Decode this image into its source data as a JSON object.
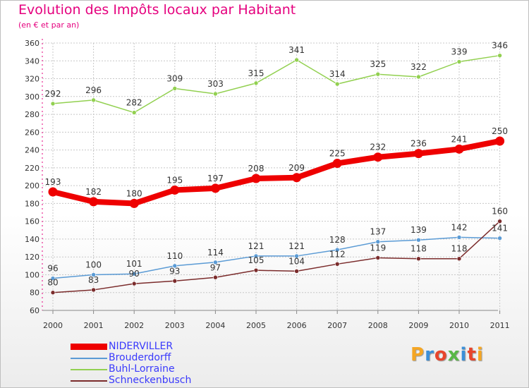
{
  "title": "Evolution des Impôts locaux par Habitant",
  "subtitle": "(en € et par an)",
  "logo": {
    "text": "Proxiti",
    "colors": [
      "#f5a623",
      "#3b8fd8",
      "#e8452c",
      "#59b847",
      "#3b8fd8",
      "#e8452c",
      "#f5a623"
    ]
  },
  "chart_data": {
    "type": "line",
    "title": "Evolution des Impôts locaux par Habitant",
    "subtitle": "(en € et par an)",
    "xlabel": "",
    "ylabel": "",
    "x": [
      2000,
      2001,
      2002,
      2003,
      2004,
      2005,
      2006,
      2007,
      2008,
      2009,
      2010,
      2011
    ],
    "ylim": [
      60,
      360
    ],
    "yticks": [
      60,
      80,
      100,
      120,
      140,
      160,
      180,
      200,
      220,
      240,
      260,
      280,
      300,
      320,
      340,
      360
    ],
    "grid": true,
    "legend": "bottom-left",
    "series": [
      {
        "name": "NIDERVILLER",
        "color": "#ee0000",
        "values": [
          193,
          182,
          180,
          195,
          197,
          208,
          209,
          225,
          232,
          236,
          241,
          250
        ]
      },
      {
        "name": "Brouderdorff",
        "color": "#5b9bd5",
        "values": [
          96,
          100,
          101,
          110,
          114,
          121,
          121,
          128,
          137,
          139,
          142,
          141
        ]
      },
      {
        "name": "Buhl-Lorraine",
        "color": "#92d050",
        "values": [
          292,
          296,
          282,
          309,
          303,
          315,
          341,
          314,
          325,
          322,
          339,
          346
        ]
      },
      {
        "name": "Schneckenbusch",
        "color": "#7b2c2c",
        "values": [
          80,
          83,
          90,
          93,
          97,
          105,
          104,
          112,
          119,
          118,
          118,
          160
        ]
      }
    ]
  }
}
